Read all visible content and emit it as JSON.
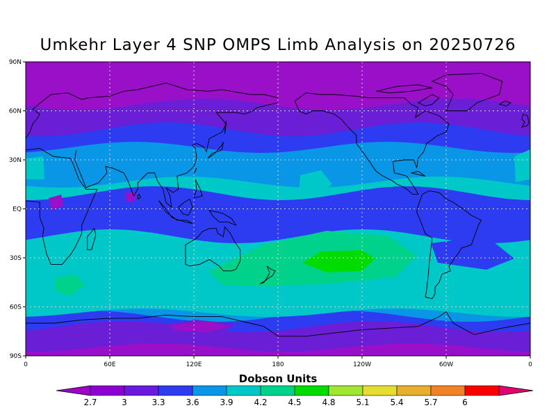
{
  "title": "Umkehr Layer 4 SNP OMPS Limb Analysis on 20250726",
  "lat_labels": [
    "90N",
    "60N",
    "30N",
    "EQ",
    "30S",
    "60S",
    "90S"
  ],
  "lon_labels": [
    "0",
    "60E",
    "120E",
    "180",
    "120W",
    "60W",
    "0"
  ],
  "colorbar": {
    "label": "Dobson Units",
    "levels": [
      "2.7",
      "3",
      "3.3",
      "3.6",
      "3.9",
      "4.2",
      "4.5",
      "4.8",
      "5.1",
      "5.4",
      "5.7",
      "6"
    ],
    "colors": [
      "#8c00d2",
      "#6b18df",
      "#2d3cf0",
      "#0a96e6",
      "#00c8c8",
      "#00d28c",
      "#00dc00",
      "#a0e632",
      "#e6dc32",
      "#e6af2d",
      "#f08228",
      "#fa0000"
    ],
    "under_color": "#a000c8",
    "over_color": "#e6006e"
  },
  "bands_colors": {
    "purple": "#9a10c8",
    "violet": "#6a1ed6",
    "blue": "#2d3cf0",
    "lightblue": "#0a96e6",
    "cyan": "#00c8c8",
    "seagreen": "#00d28c",
    "green": "#00dc00"
  }
}
